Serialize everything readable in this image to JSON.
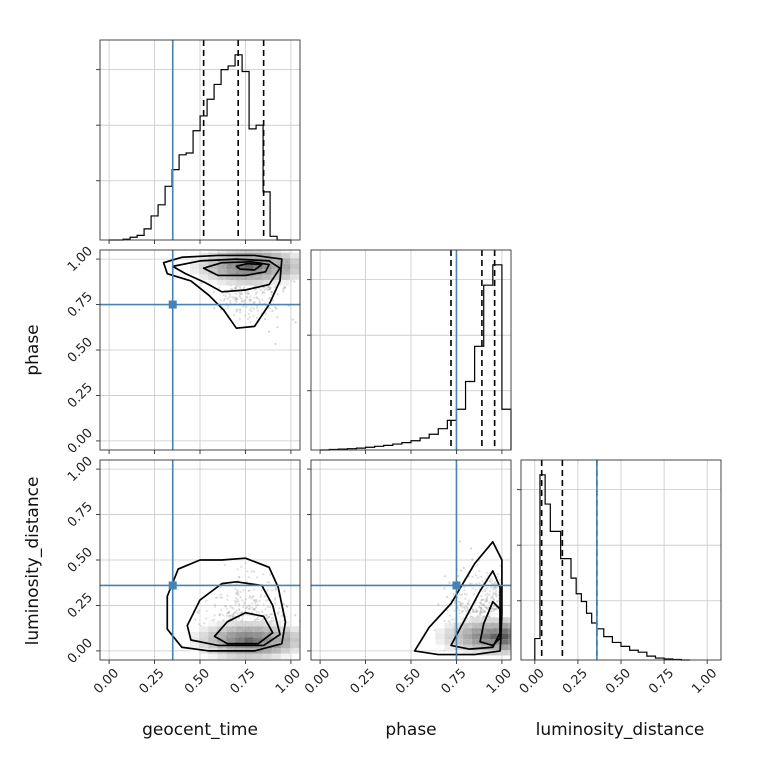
{
  "chart_data": {
    "type": "corner",
    "parameters": [
      "geocent_time",
      "phase",
      "luminosity_distance"
    ],
    "truths": {
      "geocent_time": 0.35,
      "phase": 0.75,
      "luminosity_distance": 0.36
    },
    "truth_color": "#4682b4",
    "tick_labels": [
      "0.00",
      "0.25",
      "0.50",
      "0.75",
      "1.00"
    ],
    "grid": true,
    "marginals": [
      {
        "parameter": "geocent_time",
        "xlim": [
          -0.05,
          1.05
        ],
        "bin_edges": [
          0.0,
          0.0385,
          0.077,
          0.1155,
          0.154,
          0.1925,
          0.231,
          0.2695,
          0.308,
          0.3465,
          0.385,
          0.4235,
          0.462,
          0.5005,
          0.539,
          0.5775,
          0.616,
          0.6545,
          0.693,
          0.7315,
          0.77,
          0.8085,
          0.847,
          0.8855,
          0.924,
          0.9625,
          1.0
        ],
        "heights": [
          0,
          0,
          0.004,
          0.015,
          0.025,
          0.06,
          0.13,
          0.19,
          0.29,
          0.38,
          0.46,
          0.47,
          0.59,
          0.67,
          0.76,
          0.84,
          0.92,
          0.94,
          1.0,
          0.91,
          0.6,
          0.62,
          0.26,
          0.02,
          0.0,
          0
        ],
        "quantiles": [
          0.52,
          0.71,
          0.85
        ]
      },
      {
        "parameter": "phase",
        "xlim": [
          -0.05,
          1.05
        ],
        "bin_edges": [
          0.0,
          0.05,
          0.1,
          0.15,
          0.2,
          0.25,
          0.3,
          0.35,
          0.4,
          0.45,
          0.5,
          0.55,
          0.6,
          0.65,
          0.7,
          0.75,
          0.8,
          0.85,
          0.9,
          0.95,
          1.0,
          1.05
        ],
        "heights": [
          0,
          0.003,
          0.005,
          0.007,
          0.01,
          0.015,
          0.02,
          0.025,
          0.032,
          0.04,
          0.05,
          0.065,
          0.085,
          0.115,
          0.16,
          0.22,
          0.37,
          0.56,
          0.89,
          1.0,
          0.22
        ],
        "quantiles": [
          0.72,
          0.89,
          0.96
        ]
      },
      {
        "parameter": "luminosity_distance",
        "xlim": [
          -0.08,
          1.08
        ],
        "bin_edges": [
          0.0,
          0.03,
          0.06,
          0.09,
          0.12,
          0.15,
          0.18,
          0.21,
          0.24,
          0.27,
          0.3,
          0.33,
          0.36,
          0.4,
          0.45,
          0.5,
          0.55,
          0.6,
          0.65,
          0.7,
          0.75,
          0.8,
          0.85,
          0.9
        ],
        "heights": [
          0.11,
          0.95,
          0.8,
          0.66,
          0.66,
          0.52,
          0.52,
          0.42,
          0.34,
          0.3,
          0.24,
          0.19,
          0.16,
          0.12,
          0.09,
          0.07,
          0.05,
          0.04,
          0.02,
          0.01,
          0.005,
          0.003,
          0.0
        ],
        "quantiles": [
          0.04,
          0.16,
          0.36
        ]
      }
    ],
    "joints": [
      {
        "x": "geocent_time",
        "y": "phase",
        "xlim": [
          -0.05,
          1.05
        ],
        "ylim": [
          -0.05,
          1.05
        ],
        "density_peak": [
          0.77,
          0.96
        ],
        "contour_levels": [
          [
            [
              0.3,
              0.98
            ],
            [
              0.4,
              1.01
            ],
            [
              0.6,
              1.02
            ],
            [
              0.8,
              1.02
            ],
            [
              0.95,
              1.0
            ],
            [
              0.94,
              0.88
            ],
            [
              0.88,
              0.75
            ],
            [
              0.8,
              0.63
            ],
            [
              0.7,
              0.62
            ],
            [
              0.63,
              0.72
            ],
            [
              0.55,
              0.8
            ],
            [
              0.45,
              0.88
            ],
            [
              0.32,
              0.92
            ]
          ],
          [
            [
              0.35,
              0.96
            ],
            [
              0.5,
              0.99
            ],
            [
              0.7,
              1.0
            ],
            [
              0.88,
              0.99
            ],
            [
              0.94,
              0.95
            ],
            [
              0.88,
              0.86
            ],
            [
              0.75,
              0.83
            ],
            [
              0.62,
              0.82
            ],
            [
              0.53,
              0.87
            ],
            [
              0.42,
              0.92
            ]
          ],
          [
            [
              0.52,
              0.95
            ],
            [
              0.62,
              0.98
            ],
            [
              0.78,
              0.985
            ],
            [
              0.88,
              0.97
            ],
            [
              0.86,
              0.93
            ],
            [
              0.75,
              0.91
            ],
            [
              0.6,
              0.91
            ]
          ],
          [
            [
              0.7,
              0.96
            ],
            [
              0.76,
              0.975
            ],
            [
              0.84,
              0.97
            ],
            [
              0.8,
              0.94
            ],
            [
              0.72,
              0.945
            ]
          ]
        ]
      },
      {
        "x": "geocent_time",
        "y": "luminosity_distance",
        "xlim": [
          -0.05,
          1.05
        ],
        "ylim": [
          -0.05,
          1.05
        ],
        "density_peak": [
          0.77,
          0.06
        ],
        "contour_levels": [
          [
            [
              0.32,
              0.3
            ],
            [
              0.38,
              0.45
            ],
            [
              0.5,
              0.5
            ],
            [
              0.62,
              0.5
            ],
            [
              0.75,
              0.51
            ],
            [
              0.88,
              0.46
            ],
            [
              0.93,
              0.35
            ],
            [
              0.97,
              0.16
            ],
            [
              0.95,
              0.04
            ],
            [
              0.8,
              0.0
            ],
            [
              0.55,
              0.0
            ],
            [
              0.4,
              0.02
            ],
            [
              0.32,
              0.12
            ]
          ],
          [
            [
              0.43,
              0.14
            ],
            [
              0.5,
              0.28
            ],
            [
              0.62,
              0.37
            ],
            [
              0.7,
              0.38
            ],
            [
              0.84,
              0.36
            ],
            [
              0.9,
              0.25
            ],
            [
              0.94,
              0.09
            ],
            [
              0.85,
              0.03
            ],
            [
              0.6,
              0.03
            ],
            [
              0.45,
              0.06
            ]
          ],
          [
            [
              0.58,
              0.08
            ],
            [
              0.65,
              0.16
            ],
            [
              0.75,
              0.21
            ],
            [
              0.85,
              0.19
            ],
            [
              0.9,
              0.1
            ],
            [
              0.82,
              0.04
            ],
            [
              0.65,
              0.04
            ]
          ]
        ]
      },
      {
        "x": "phase",
        "y": "luminosity_distance",
        "xlim": [
          -0.05,
          1.05
        ],
        "ylim": [
          -0.05,
          1.05
        ],
        "density_peak": [
          0.96,
          0.08
        ],
        "contour_levels": [
          [
            [
              0.52,
              0.0
            ],
            [
              0.6,
              0.13
            ],
            [
              0.72,
              0.26
            ],
            [
              0.85,
              0.48
            ],
            [
              0.95,
              0.6
            ],
            [
              1.0,
              0.5
            ],
            [
              1.0,
              0.2
            ],
            [
              0.99,
              0.0
            ],
            [
              0.85,
              -0.02
            ],
            [
              0.65,
              -0.02
            ]
          ],
          [
            [
              0.72,
              0.03
            ],
            [
              0.8,
              0.18
            ],
            [
              0.88,
              0.33
            ],
            [
              0.95,
              0.44
            ],
            [
              0.99,
              0.35
            ],
            [
              0.99,
              0.1
            ],
            [
              0.95,
              0.02
            ],
            [
              0.82,
              0.01
            ]
          ],
          [
            [
              0.88,
              0.05
            ],
            [
              0.9,
              0.15
            ],
            [
              0.95,
              0.27
            ],
            [
              0.99,
              0.23
            ],
            [
              0.99,
              0.07
            ],
            [
              0.95,
              0.03
            ]
          ]
        ]
      }
    ]
  }
}
